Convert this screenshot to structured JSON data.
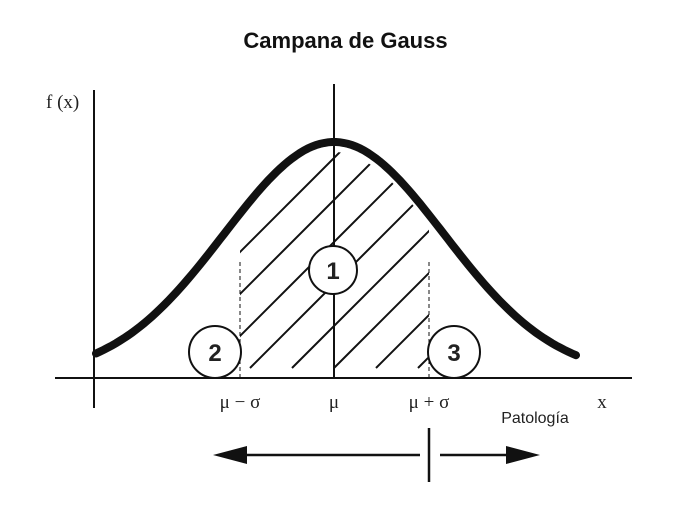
{
  "title": "Campana de Gauss",
  "y_axis_label": "f (x)",
  "x_axis_label": "x",
  "tick_labels": {
    "minus_sigma": "μ − σ",
    "mean": "μ",
    "plus_sigma": "μ + σ"
  },
  "regions": [
    "1",
    "2",
    "3"
  ],
  "annotation": "Patología",
  "colors": {
    "line": "#111111",
    "background": "#ffffff"
  }
}
